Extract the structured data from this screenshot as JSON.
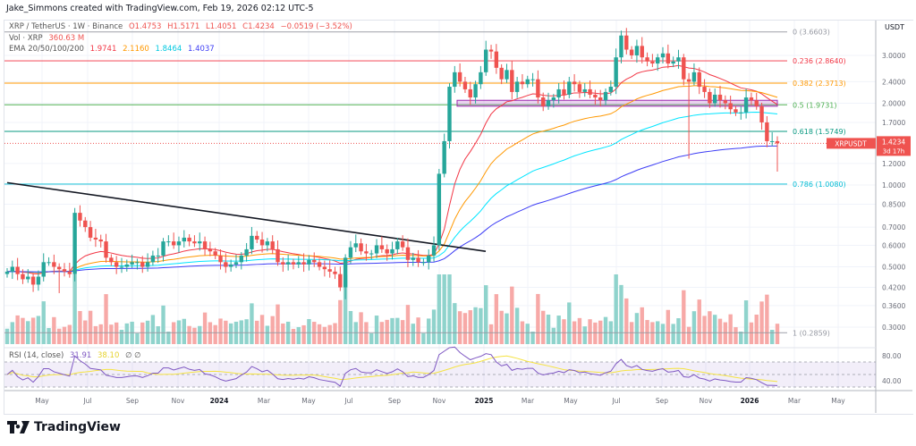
{
  "credit": "Jake_Simmons created with TradingView.com, Feb 19, 2026 02:12 UTC-5",
  "legend": {
    "symbol": "XRP / TetherUS · 1W · Binance",
    "open": "O1.4753",
    "high": "H1.5171",
    "low": "L1.4051",
    "close": "C1.4234",
    "change": "−0.0519 (−3.52%)",
    "vol_label": "Vol · XRP",
    "vol_value": "360.63 M",
    "ema_label": "EMA 20/50/100/200",
    "ema20": "1.9741",
    "ema50": "2.1160",
    "ema100": "1.8464",
    "ema200": "1.4037",
    "rsi_label": "RSI (14, close)",
    "rsi_value": "31.91",
    "rsi_ma": "38.10",
    "rsi_flags": "∅ ∅"
  },
  "colors": {
    "up": "#26a69a",
    "down": "#ef5350",
    "vol_up": "#8fd3cc",
    "vol_down": "#f7a9a7",
    "ema20": "#f23645",
    "ema50": "#ff9800",
    "ema100": "#00e5ff",
    "ema200": "#3d3df5",
    "rsi": "#7e57c2",
    "rsi_ma": "#f5e342"
  },
  "price_axis": {
    "currency": "USDT",
    "ticks": [
      "3.0000",
      "2.4000",
      "2.0000",
      "1.7000",
      "1.2000",
      "1.0000",
      "0.8500",
      "0.7000",
      "0.6000",
      "0.5000",
      "0.4200",
      "0.3600",
      "0.3000"
    ],
    "last_symbol": "XRPUSDT",
    "last_price": "1.4234",
    "countdown": "3d 17h"
  },
  "rsi_axis": {
    "ticks": [
      "80.00",
      "40.00"
    ]
  },
  "time_axis": [
    "May",
    "Jul",
    "Sep",
    "Nov",
    "2024",
    "Mar",
    "May",
    "Jul",
    "Sep",
    "Nov",
    "2025",
    "Mar",
    "May",
    "Jul",
    "Sep",
    "Nov",
    "2026",
    "Mar",
    "May"
  ],
  "fib_levels": [
    {
      "label": "0 (3.6603)",
      "price": 3.6603,
      "color": "#9598a1"
    },
    {
      "label": "0.236 (2.8640)",
      "price": 2.864,
      "color": "#f23645"
    },
    {
      "label": "0.382 (2.3713)",
      "price": 2.3713,
      "color": "#ff9800"
    },
    {
      "label": "0.5 (1.9731)",
      "price": 1.9731,
      "color": "#4caf50"
    },
    {
      "label": "0.618 (1.5749)",
      "price": 1.5749,
      "color": "#089981"
    },
    {
      "label": "0.786 (1.0080)",
      "price": 1.008,
      "color": "#00bcd4"
    },
    {
      "label": "1 (0.2859)",
      "price": 0.2859,
      "color": "#9598a1"
    }
  ],
  "chart_data": {
    "type": "candlestick",
    "interval": "1W",
    "y_scale": "log",
    "ylim": [
      0.27,
      3.9
    ],
    "grid": true,
    "first_week": "2023-04-03",
    "closes": [
      0.48,
      0.5,
      0.47,
      0.45,
      0.46,
      0.43,
      0.46,
      0.52,
      0.52,
      0.5,
      0.49,
      0.48,
      0.47,
      0.79,
      0.74,
      0.7,
      0.64,
      0.63,
      0.62,
      0.54,
      0.52,
      0.5,
      0.5,
      0.51,
      0.52,
      0.52,
      0.5,
      0.52,
      0.55,
      0.55,
      0.62,
      0.62,
      0.6,
      0.62,
      0.64,
      0.62,
      0.61,
      0.62,
      0.58,
      0.57,
      0.55,
      0.52,
      0.5,
      0.51,
      0.52,
      0.55,
      0.58,
      0.65,
      0.63,
      0.6,
      0.62,
      0.58,
      0.52,
      0.51,
      0.52,
      0.51,
      0.52,
      0.51,
      0.53,
      0.52,
      0.5,
      0.49,
      0.48,
      0.47,
      0.42,
      0.54,
      0.59,
      0.61,
      0.57,
      0.56,
      0.56,
      0.6,
      0.58,
      0.56,
      0.58,
      0.62,
      0.59,
      0.53,
      0.54,
      0.52,
      0.52,
      0.55,
      0.6,
      1.1,
      1.45,
      2.3,
      2.6,
      2.4,
      2.25,
      2.1,
      2.35,
      2.6,
      3.15,
      3.1,
      2.7,
      2.45,
      2.65,
      2.2,
      2.4,
      2.35,
      2.45,
      2.45,
      2.1,
      1.95,
      2.05,
      2.1,
      2.25,
      2.15,
      2.4,
      2.35,
      2.2,
      2.25,
      2.15,
      2.1,
      2.05,
      2.2,
      2.3,
      2.95,
      3.55,
      3.15,
      3.0,
      3.25,
      2.95,
      2.85,
      2.8,
      2.95,
      3.05,
      2.8,
      2.85,
      2.95,
      2.45,
      2.4,
      2.6,
      2.3,
      2.2,
      2.0,
      2.15,
      2.05,
      2.0,
      1.9,
      1.85,
      1.85,
      2.1,
      2.05,
      1.95,
      1.7,
      1.45,
      1.45,
      1.4234
    ],
    "notable_lows": {
      "2023-06-12": 0.4,
      "2024-07-01": 0.38,
      "2025-10-06": 1.25,
      "2026-02-02": 1.12
    },
    "trendline": {
      "from_price": 1.02,
      "to_price": 0.57
    },
    "zone": {
      "top": 2.05,
      "bottom": 1.95
    },
    "indicators": [
      "EMA 20",
      "EMA 50",
      "EMA 100",
      "EMA 200",
      "Volume",
      "RSI 14"
    ]
  }
}
